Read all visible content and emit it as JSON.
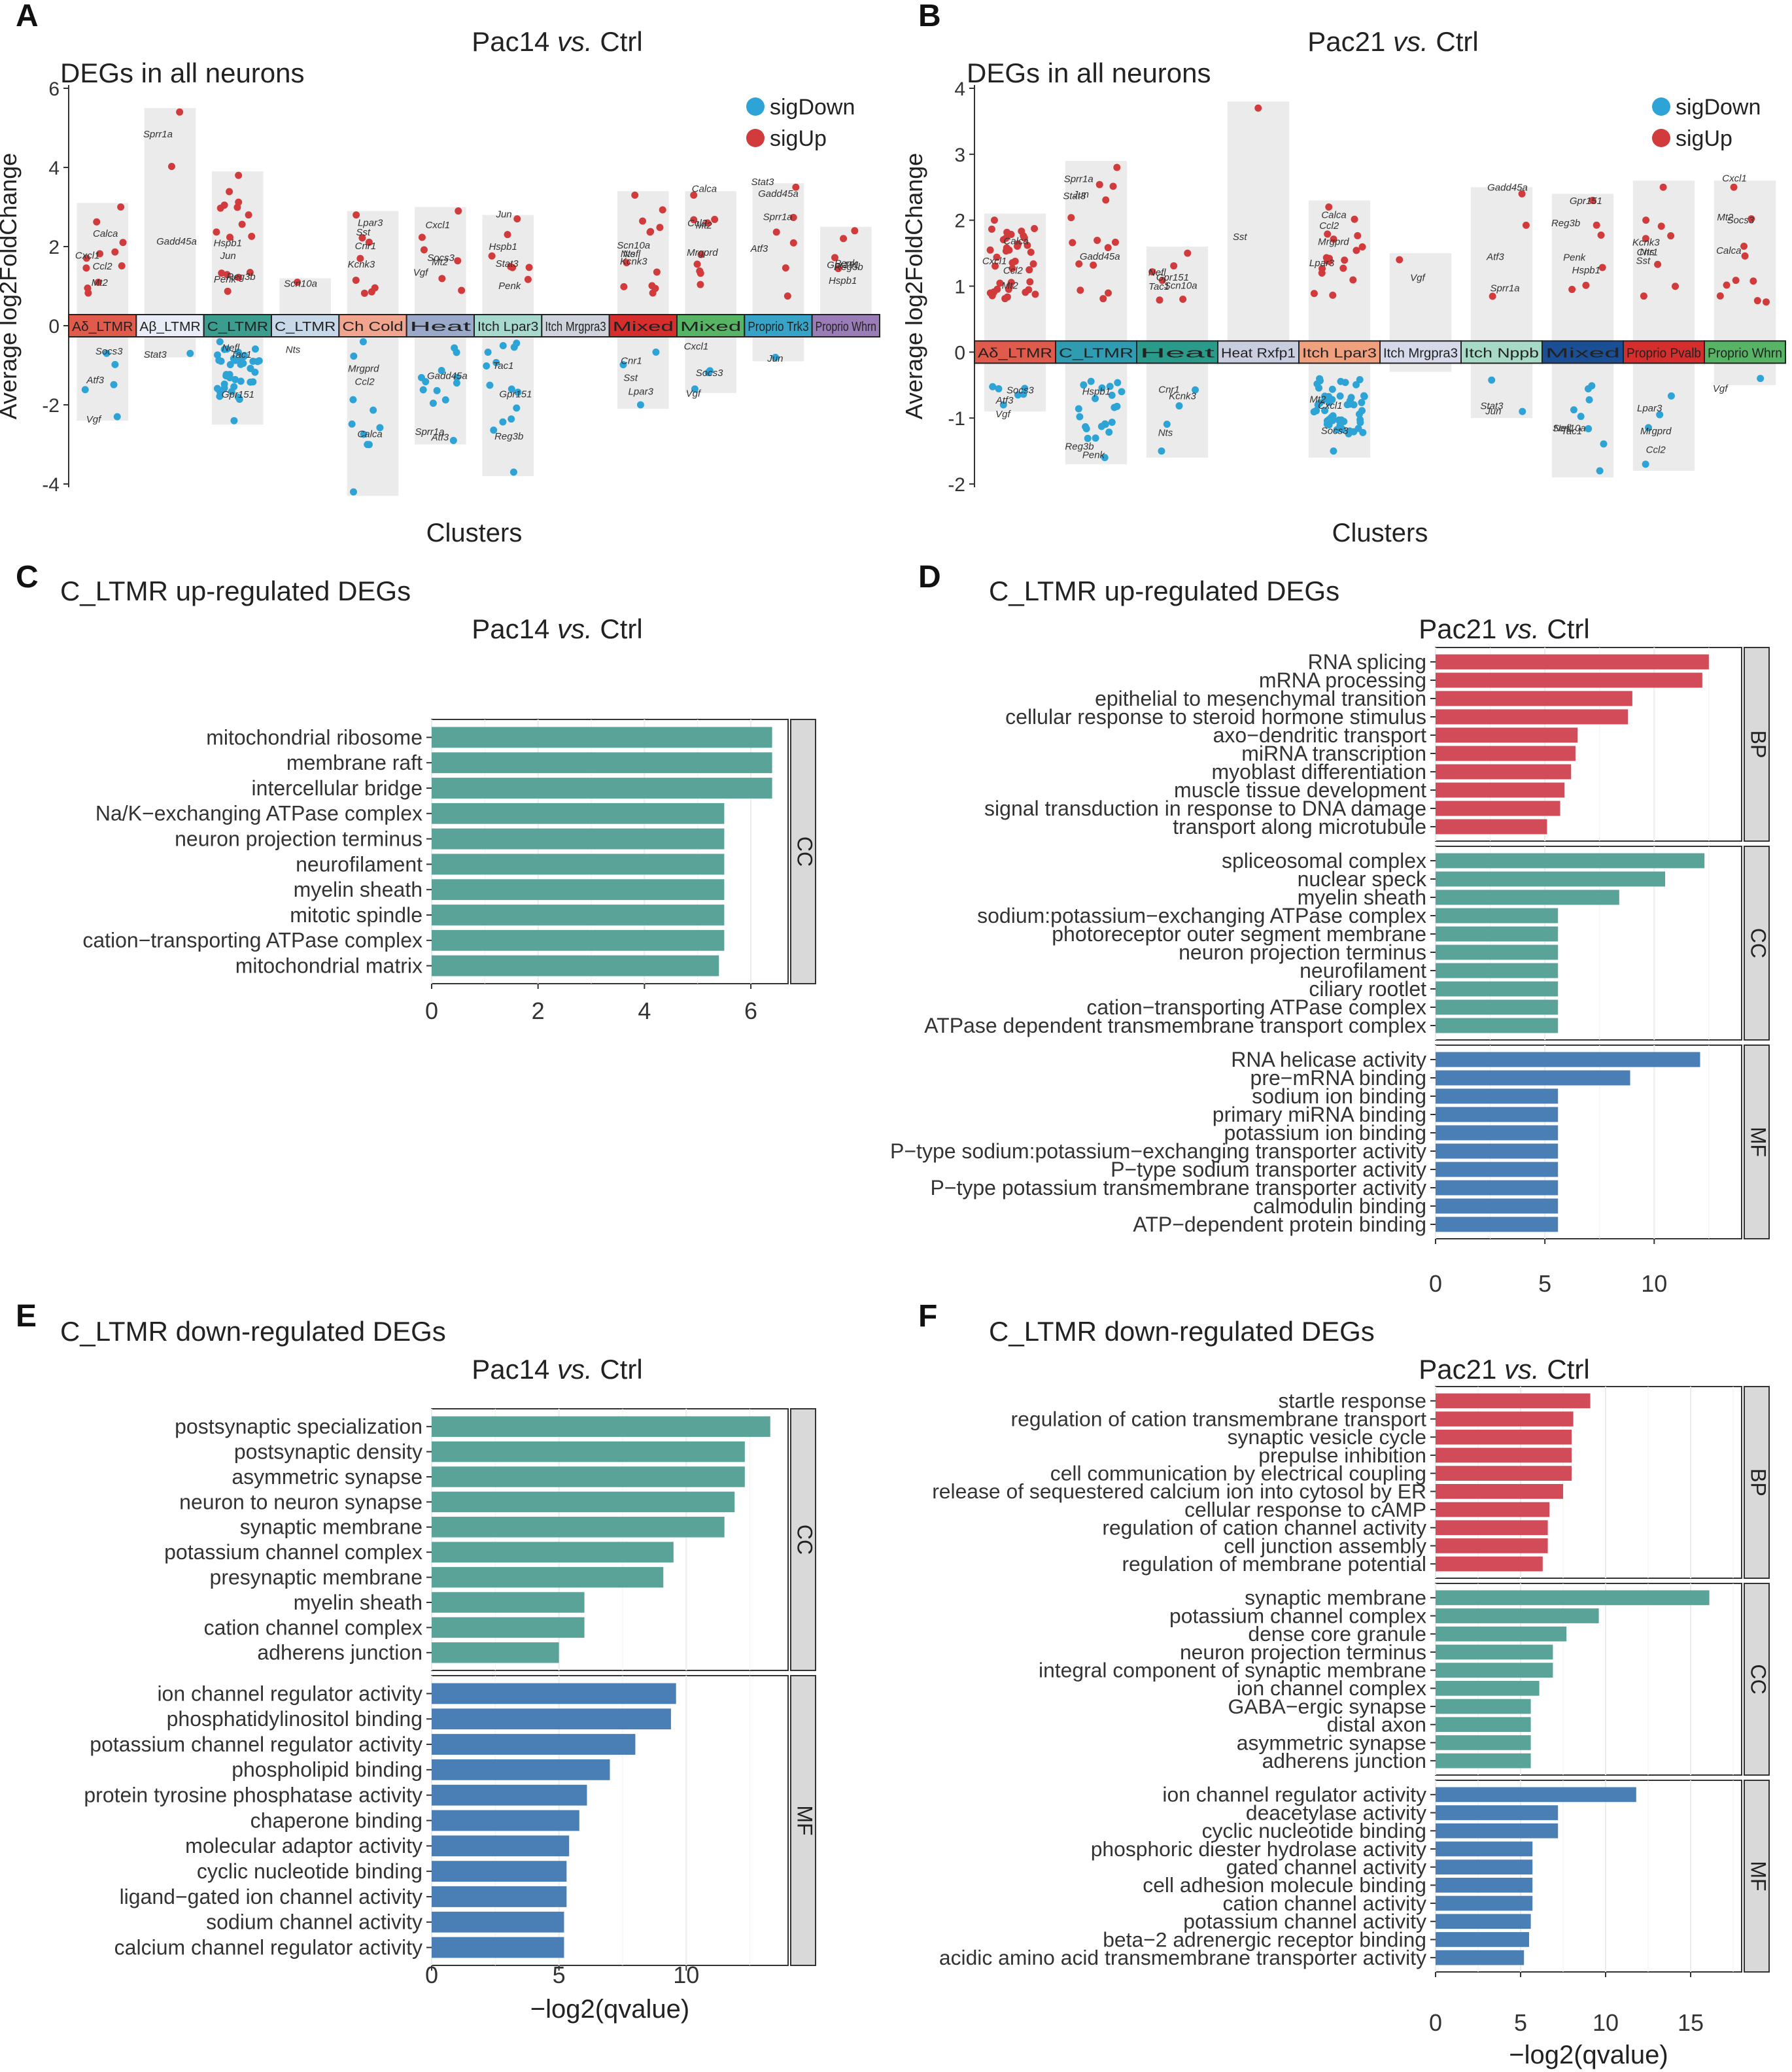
{
  "chart_data": [
    {
      "id": "A",
      "type": "scatter",
      "panel_label": "A",
      "title_pre": "Pac14 ",
      "title_vs": "vs.",
      "title_post": " Ctrl",
      "subtitle": "DEGs in all neurons",
      "ylabel": "Average log2FoldChange",
      "xlabel": "Clusters",
      "ylim": [
        -4,
        6
      ],
      "yticks": [
        -4,
        -2,
        0,
        2,
        4,
        6
      ],
      "legend": [
        {
          "label": "sigDown",
          "color": "#2ea3d5"
        },
        {
          "label": "sigUp",
          "color": "#d13b3b"
        }
      ],
      "clusters": [
        {
          "label": "Aδ_LTMR",
          "color": "#e05b4b",
          "up_max": 3.1,
          "down_min": -2.4,
          "n_up": 11,
          "n_down": 5
        },
        {
          "label": "Aβ_LTMR",
          "color": "#e8ecf6",
          "up_max": 5.5,
          "down_min": -0.8,
          "n_up": 2,
          "n_down": 1
        },
        {
          "label": "C_LTMR",
          "color": "#3a9d8e",
          "up_max": 3.9,
          "down_min": -2.5,
          "n_up": 16,
          "n_down": 40
        },
        {
          "label": "C_LTMR",
          "color": "#c7d8e8",
          "up_max": 1.2,
          "down_min": -0.3,
          "n_up": 1,
          "n_down": 1
        },
        {
          "label": "Ch Cold",
          "color": "#f2a58e",
          "up_max": 2.9,
          "down_min": -4.3,
          "n_up": 8,
          "n_down": 10
        },
        {
          "label": "Heat",
          "color": "#9aa9c9",
          "up_max": 3.0,
          "down_min": -3.0,
          "n_up": 6,
          "n_down": 12
        },
        {
          "label": "Itch Lpar3",
          "color": "#a8d9cf",
          "up_max": 2.8,
          "down_min": -3.8,
          "n_up": 7,
          "n_down": 14
        },
        {
          "label": "Itch Mrgpra3",
          "color": "#cfd3dc",
          "up_max": 0.1,
          "down_min": -0.1,
          "n_up": 0,
          "n_down": 0
        },
        {
          "label": "Mixed",
          "color": "#d62d2d",
          "up_max": 3.4,
          "down_min": -2.1,
          "n_up": 12,
          "n_down": 3
        },
        {
          "label": "Mixed",
          "color": "#56b464",
          "up_max": 3.4,
          "down_min": -1.7,
          "n_up": 9,
          "n_down": 3
        },
        {
          "label": "Proprio Trk3",
          "color": "#37a3c6",
          "up_max": 3.6,
          "down_min": -0.9,
          "n_up": 6,
          "n_down": 1
        },
        {
          "label": "Proprio Whrn",
          "color": "#9a7cb6",
          "up_max": 2.5,
          "down_min": -0.3,
          "n_up": 4,
          "n_down": 0
        }
      ],
      "gene_labels": [
        "Ccl2",
        "Calca",
        "Mt2",
        "Cxcl1",
        "Socs3",
        "Vgf",
        "Atf3",
        "Gadd45a",
        "Sprr1a",
        "Stat3",
        "Jun",
        "Penk",
        "Hspb1",
        "Reg3b",
        "Gpr151",
        "Tac1",
        "Nefl",
        "Scn10a",
        "Nts",
        "Kcnk3",
        "Cnr1",
        "Sst",
        "Lpar3",
        "Mrgprd"
      ]
    },
    {
      "id": "B",
      "type": "scatter",
      "panel_label": "B",
      "title_pre": "Pac21 ",
      "title_vs": "vs.",
      "title_post": " Ctrl",
      "subtitle": "DEGs in all neurons",
      "ylabel": "Average log2FoldChange",
      "xlabel": "Clusters",
      "ylim": [
        -2,
        4
      ],
      "yticks": [
        -2,
        -1,
        0,
        1,
        2,
        3,
        4
      ],
      "legend": [
        {
          "label": "sigDown",
          "color": "#2ea3d5"
        },
        {
          "label": "sigUp",
          "color": "#d13b3b"
        }
      ],
      "clusters": [
        {
          "label": "Aδ_LTMR",
          "color": "#e05b4b",
          "up_max": 2.1,
          "down_min": -0.9,
          "n_up": 40,
          "n_down": 6
        },
        {
          "label": "C_LTMR",
          "color": "#2f9cb2",
          "up_max": 2.9,
          "down_min": -1.7,
          "n_up": 14,
          "n_down": 22
        },
        {
          "label": "Heat",
          "color": "#2a9b8a",
          "up_max": 1.6,
          "down_min": -1.6,
          "n_up": 6,
          "n_down": 4
        },
        {
          "label": "Heat Rxfp1",
          "color": "#c9cde0",
          "up_max": 3.8,
          "down_min": -0.1,
          "n_up": 1,
          "n_down": 0
        },
        {
          "label": "Itch Lpar3",
          "color": "#f0a07d",
          "up_max": 2.3,
          "down_min": -1.6,
          "n_up": 18,
          "n_down": 55
        },
        {
          "label": "Itch Mrgpra3",
          "color": "#d5d9ea",
          "up_max": 1.5,
          "down_min": -0.3,
          "n_up": 1,
          "n_down": 0
        },
        {
          "label": "Itch Nppb",
          "color": "#a6d9c6",
          "up_max": 2.5,
          "down_min": -1.0,
          "n_up": 3,
          "n_down": 2
        },
        {
          "label": "Mixed",
          "color": "#1a4f96",
          "up_max": 2.4,
          "down_min": -1.9,
          "n_up": 6,
          "n_down": 8
        },
        {
          "label": "Proprio Pvalb",
          "color": "#d62d2d",
          "up_max": 2.6,
          "down_min": -1.8,
          "n_up": 8,
          "n_down": 4
        },
        {
          "label": "Proprio Whrn",
          "color": "#56b464",
          "up_max": 2.6,
          "down_min": -0.5,
          "n_up": 10,
          "n_down": 1
        }
      ],
      "gene_labels": [
        "Ccl2",
        "Calca",
        "Mt2",
        "Cxcl1",
        "Socs3",
        "Vgf",
        "Atf3",
        "Gadd45a",
        "Sprr1a",
        "Stat3",
        "Jun",
        "Penk",
        "Hspb1",
        "Reg3b",
        "Gpr151",
        "Tac1",
        "Nefl",
        "Scn10a",
        "Nts",
        "Kcnk3",
        "Cnr1",
        "Sst",
        "Lpar3",
        "Mrgprd"
      ]
    },
    {
      "id": "C",
      "type": "bar",
      "panel_label": "C",
      "heading": "C_LTMR up-regulated DEGs",
      "title_pre": "Pac14 ",
      "title_vs": "vs.",
      "title_post": " Ctrl",
      "xlabel": "",
      "xlim": [
        0,
        6.7
      ],
      "xticks": [
        0,
        2,
        4,
        6
      ],
      "facets": [
        {
          "label": "CC",
          "color": "#5aa399",
          "categories": [
            "mitochondrial ribosome",
            "membrane raft",
            "intercellular bridge",
            "Na/K−exchanging ATPase complex",
            "neuron projection terminus",
            "neurofilament",
            "myelin sheath",
            "mitotic spindle",
            "cation−transporting ATPase complex",
            "mitochondrial matrix"
          ],
          "values": [
            6.4,
            6.4,
            6.4,
            5.5,
            5.5,
            5.5,
            5.5,
            5.5,
            5.5,
            5.4
          ]
        }
      ]
    },
    {
      "id": "D",
      "type": "bar",
      "panel_label": "D",
      "heading": "C_LTMR up-regulated DEGs",
      "title_pre": "Pac21 ",
      "title_vs": "vs.",
      "title_post": " Ctrl",
      "xlabel": "",
      "xlim": [
        0,
        14
      ],
      "xticks": [
        0,
        5,
        10
      ],
      "facets": [
        {
          "label": "BP",
          "color": "#d24b59",
          "categories": [
            "RNA splicing",
            "mRNA processing",
            "epithelial to mesenchymal transition",
            "cellular response to steroid hormone stimulus",
            "axo−dendritic transport",
            "miRNA transcription",
            "myoblast differentiation",
            "muscle tissue development",
            "signal transduction in response to DNA damage",
            "transport along microtubule"
          ],
          "values": [
            12.5,
            12.2,
            9.0,
            8.8,
            6.5,
            6.4,
            6.2,
            5.9,
            5.7,
            5.1
          ]
        },
        {
          "label": "CC",
          "color": "#5aa399",
          "categories": [
            "spliceosomal complex",
            "nuclear speck",
            "myelin sheath",
            "sodium:potassium−exchanging ATPase complex",
            "photoreceptor outer segment membrane",
            "neuron projection terminus",
            "neurofilament",
            "ciliary rootlet",
            "cation−transporting ATPase complex",
            "ATPase dependent transmembrane transport complex"
          ],
          "values": [
            12.3,
            10.5,
            8.4,
            5.6,
            5.6,
            5.6,
            5.6,
            5.6,
            5.6,
            5.6
          ]
        },
        {
          "label": "MF",
          "color": "#4a7fb6",
          "categories": [
            "RNA helicase activity",
            "pre−mRNA binding",
            "sodium ion binding",
            "primary miRNA binding",
            "potassium ion binding",
            "P−type sodium:potassium−exchanging transporter activity",
            "P−type sodium transporter activity",
            "P−type potassium transmembrane transporter activity",
            "calmodulin binding",
            "ATP−dependent protein binding"
          ],
          "values": [
            12.1,
            8.9,
            5.6,
            5.6,
            5.6,
            5.6,
            5.6,
            5.6,
            5.6,
            5.6
          ]
        }
      ]
    },
    {
      "id": "E",
      "type": "bar",
      "panel_label": "E",
      "heading": "C_LTMR down-regulated DEGs",
      "title_pre": "Pac14 ",
      "title_vs": "vs.",
      "title_post": " Ctrl",
      "xlabel": "−log2(qvalue)",
      "xlim": [
        0,
        14
      ],
      "xticks": [
        0,
        5,
        10
      ],
      "facets": [
        {
          "label": "CC",
          "color": "#5aa399",
          "categories": [
            "postsynaptic specialization",
            "postsynaptic density",
            "asymmetric synapse",
            "neuron to neuron synapse",
            "synaptic membrane",
            "potassium channel complex",
            "presynaptic membrane",
            "myelin sheath",
            "cation channel complex",
            "adherens junction"
          ],
          "values": [
            13.3,
            12.3,
            12.3,
            11.9,
            11.5,
            9.5,
            9.1,
            6.0,
            6.0,
            5.0
          ]
        },
        {
          "label": "MF",
          "color": "#4a7fb6",
          "categories": [
            "ion channel regulator activity",
            "phosphatidylinositol binding",
            "potassium channel regulator activity",
            "phospholipid binding",
            "protein tyrosine phosphatase activity",
            "chaperone binding",
            "molecular adaptor activity",
            "cyclic nucleotide binding",
            "ligand−gated ion channel activity",
            "sodium channel activity",
            "calcium channel regulator activity"
          ],
          "values": [
            9.6,
            9.4,
            8.0,
            7.0,
            6.1,
            5.8,
            5.4,
            5.3,
            5.3,
            5.2,
            5.2
          ]
        }
      ]
    },
    {
      "id": "F",
      "type": "bar",
      "panel_label": "F",
      "heading": "C_LTMR down-regulated DEGs",
      "title_pre": "Pac21 ",
      "title_vs": "vs.",
      "title_post": " Ctrl",
      "xlabel": "−log2(qvalue)",
      "xlim": [
        0,
        18
      ],
      "xticks": [
        0,
        5,
        10,
        15
      ],
      "facets": [
        {
          "label": "BP",
          "color": "#d24b59",
          "categories": [
            "startle response",
            "regulation of cation transmembrane transport",
            "synaptic vesicle cycle",
            "prepulse inhibition",
            "cell communication by electrical coupling",
            "release of sequestered calcium ion into cytosol by ER",
            "cellular response to cAMP",
            "regulation of cation channel activity",
            "cell junction assembly",
            "regulation of membrane potential"
          ],
          "values": [
            9.1,
            8.1,
            8.0,
            8.0,
            8.0,
            7.5,
            6.7,
            6.6,
            6.6,
            6.3
          ]
        },
        {
          "label": "CC",
          "color": "#5aa399",
          "categories": [
            "synaptic membrane",
            "potassium channel complex",
            "dense core granule",
            "neuron projection terminus",
            "integral component of synaptic membrane",
            "ion channel complex",
            "GABA−ergic synapse",
            "distal axon",
            "asymmetric synapse",
            "adherens junction"
          ],
          "values": [
            16.1,
            9.6,
            7.7,
            6.9,
            6.9,
            6.1,
            5.6,
            5.6,
            5.6,
            5.6
          ]
        },
        {
          "label": "MF",
          "color": "#4a7fb6",
          "categories": [
            "ion channel regulator activity",
            "deacetylase activity",
            "cyclic nucleotide binding",
            "phosphoric diester hydrolase activity",
            "gated channel activity",
            "cell adhesion molecule binding",
            "cation channel activity",
            "potassium channel activity",
            "beta−2 adrenergic receptor binding",
            "acidic amino acid transmembrane transporter activity"
          ],
          "values": [
            11.8,
            7.2,
            7.2,
            5.7,
            5.7,
            5.7,
            5.7,
            5.6,
            5.5,
            5.2
          ]
        }
      ]
    }
  ]
}
